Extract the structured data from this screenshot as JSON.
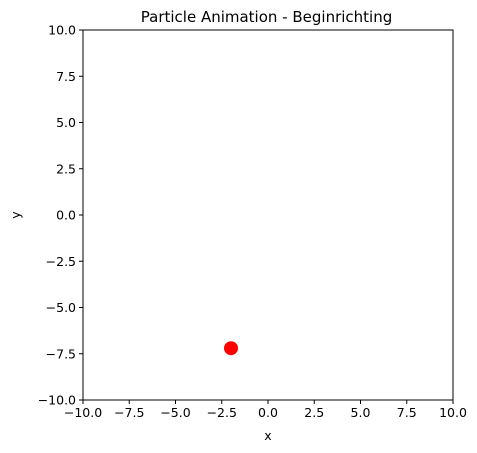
{
  "chart_data": {
    "type": "scatter",
    "title": "Particle Animation - Beginrichting",
    "xlabel": "x",
    "ylabel": "y",
    "xlim": [
      -10,
      10
    ],
    "ylim": [
      -10,
      10
    ],
    "xticks": [
      -10,
      -7.5,
      -5,
      -2.5,
      0,
      2.5,
      5,
      7.5,
      10
    ],
    "yticks": [
      -10,
      -7.5,
      -5,
      -2.5,
      0,
      2.5,
      5,
      7.5,
      10
    ],
    "xtick_labels": [
      "−10.0",
      "−7.5",
      "−5.0",
      "−2.5",
      "0.0",
      "2.5",
      "5.0",
      "7.5",
      "10.0"
    ],
    "ytick_labels": [
      "−10.0",
      "−7.5",
      "−5.0",
      "−2.5",
      "0.0",
      "2.5",
      "5.0",
      "7.5",
      "10.0"
    ],
    "grid": false,
    "points": [
      {
        "x": -2.0,
        "y": -7.2,
        "color": "#ff0000"
      }
    ]
  }
}
